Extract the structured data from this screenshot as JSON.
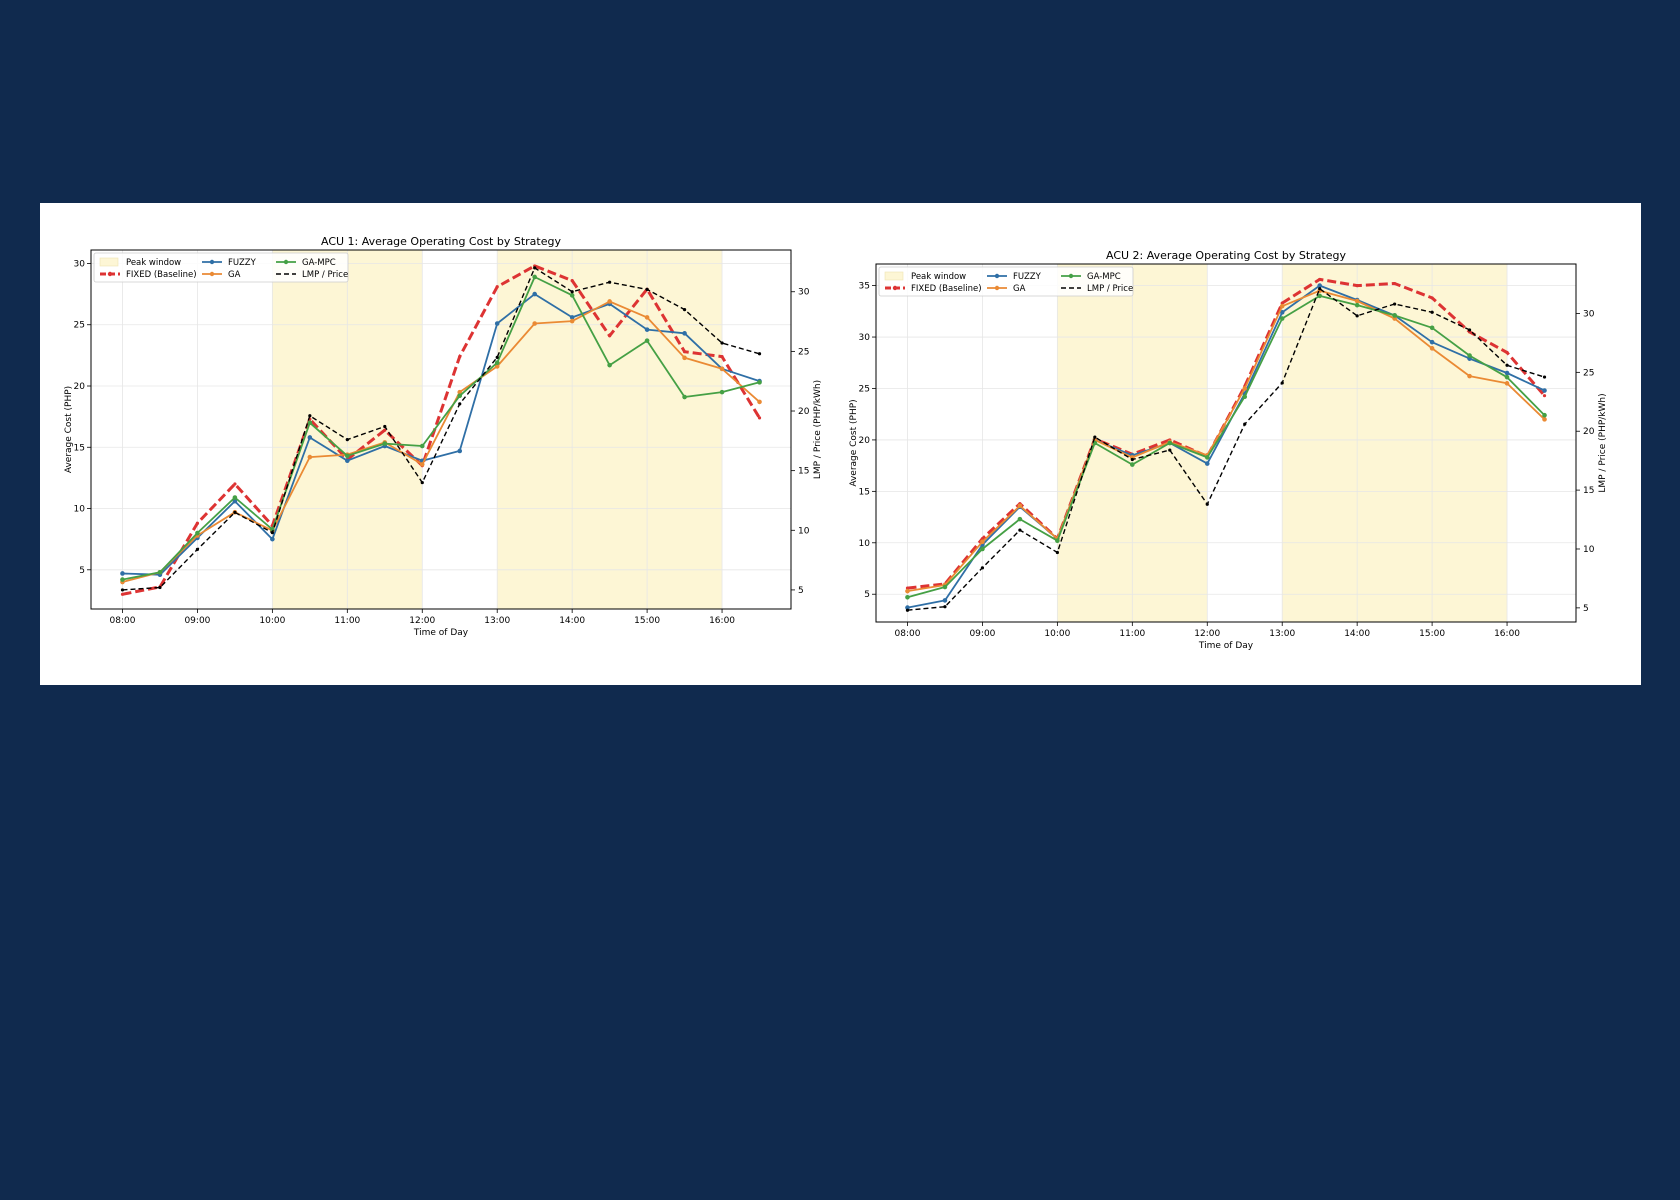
{
  "colors": {
    "FUZZY": "#2f6fa6",
    "FIXED": "#dd3333",
    "GA": "#ea8a34",
    "GA_MPC": "#45a045",
    "LMP": "#000000",
    "peak": "#fdf6d5"
  },
  "legend_labels": [
    "Peak window",
    "FIXED (Baseline)",
    "FUZZY",
    "GA",
    "GA-MPC",
    "LMP / Price"
  ],
  "chart_data": [
    {
      "type": "line",
      "title": "ACU 1: Average Operating Cost by Strategy",
      "xlabel": "Time of Day",
      "ylabel": "Average Cost (PHP)",
      "y2label": "LMP / Price (PHP/kWh)",
      "x": [
        8,
        8.5,
        9,
        9.5,
        10,
        10.5,
        11,
        11.5,
        12,
        12.5,
        13,
        13.5,
        14,
        14.5,
        15,
        15.5,
        16,
        16.5
      ],
      "xticks": [
        "08:00",
        "09:00",
        "10:00",
        "11:00",
        "12:00",
        "13:00",
        "14:00",
        "15:00",
        "16:00"
      ],
      "xticks_hours": [
        8,
        9,
        10,
        11,
        12,
        13,
        14,
        15,
        16
      ],
      "xlim": [
        7.58,
        16.92
      ],
      "ylim": [
        1.8,
        31.1
      ],
      "yticks": [
        5,
        10,
        15,
        20,
        25,
        30
      ],
      "y2lim": [
        3.4,
        33.5
      ],
      "y2ticks": [
        5,
        10,
        15,
        20,
        25,
        30
      ],
      "peak_windows": [
        [
          10,
          12
        ],
        [
          13,
          16
        ]
      ],
      "grid": true,
      "legend_position": "upper-left",
      "series": [
        {
          "name": "FIXED (Baseline)",
          "key": "FIXED",
          "axis": "left",
          "dashed": true,
          "markers": false,
          "values": [
            3.0,
            3.6,
            8.8,
            12.0,
            8.6,
            17.3,
            14.0,
            16.4,
            13.5,
            22.4,
            28.1,
            29.8,
            28.6,
            24.1,
            27.9,
            22.8,
            22.4,
            17.4
          ]
        },
        {
          "name": "FUZZY",
          "key": "FUZZY",
          "axis": "left",
          "dashed": false,
          "markers": true,
          "values": [
            4.7,
            4.6,
            7.6,
            10.6,
            7.5,
            15.8,
            13.9,
            15.1,
            13.9,
            14.7,
            25.1,
            27.5,
            25.6,
            26.7,
            24.6,
            24.3,
            21.4,
            20.4
          ]
        },
        {
          "name": "GA",
          "key": "GA",
          "axis": "left",
          "dashed": false,
          "markers": true,
          "values": [
            4.0,
            4.8,
            7.8,
            9.7,
            8.2,
            14.2,
            14.4,
            15.4,
            13.6,
            19.5,
            21.6,
            25.1,
            25.3,
            26.9,
            25.6,
            22.3,
            21.4,
            18.7
          ]
        },
        {
          "name": "GA-MPC",
          "key": "GA_MPC",
          "axis": "left",
          "dashed": false,
          "markers": true,
          "values": [
            4.2,
            4.8,
            8.0,
            10.9,
            8.3,
            17.0,
            14.3,
            15.3,
            15.1,
            19.2,
            21.9,
            28.9,
            27.4,
            21.7,
            23.7,
            19.1,
            19.5,
            20.3
          ]
        },
        {
          "name": "LMP / Price",
          "key": "LMP",
          "axis": "right",
          "dashed": true,
          "markers": false,
          "values": [
            5.0,
            5.2,
            8.4,
            11.5,
            9.8,
            19.6,
            17.6,
            18.7,
            14.0,
            20.6,
            24.5,
            32.0,
            30.0,
            30.8,
            30.2,
            28.5,
            25.7,
            24.8
          ]
        }
      ]
    },
    {
      "type": "line",
      "title": "ACU 2: Average Operating Cost by Strategy",
      "xlabel": "Time of Day",
      "ylabel": "Average Cost (PHP)",
      "y2label": "LMP / Price (PHP/kWh)",
      "x": [
        8,
        8.5,
        9,
        9.5,
        10,
        10.5,
        11,
        11.5,
        12,
        12.5,
        13,
        13.5,
        14,
        14.5,
        15,
        15.5,
        16,
        16.5
      ],
      "xticks": [
        "08:00",
        "09:00",
        "10:00",
        "11:00",
        "12:00",
        "13:00",
        "14:00",
        "15:00",
        "16:00"
      ],
      "xticks_hours": [
        8,
        9,
        10,
        11,
        12,
        13,
        14,
        15,
        16
      ],
      "xlim": [
        7.58,
        16.92
      ],
      "ylim": [
        2.3,
        37.1
      ],
      "yticks": [
        5,
        10,
        15,
        20,
        25,
        30,
        35
      ],
      "y2lim": [
        3.8,
        34.2
      ],
      "y2ticks": [
        5,
        10,
        15,
        20,
        25,
        30
      ],
      "peak_windows": [
        [
          10,
          12
        ],
        [
          13,
          16
        ]
      ],
      "grid": true,
      "legend_position": "upper-left",
      "series": [
        {
          "name": "FIXED (Baseline)",
          "key": "FIXED",
          "axis": "left",
          "dashed": true,
          "markers": false,
          "values": [
            5.6,
            6.0,
            10.4,
            13.8,
            10.4,
            20.1,
            18.6,
            20.0,
            18.4,
            25.2,
            33.3,
            35.6,
            35.0,
            35.2,
            33.8,
            30.5,
            28.5,
            24.3
          ]
        },
        {
          "name": "FUZZY",
          "key": "FUZZY",
          "axis": "left",
          "dashed": false,
          "markers": true,
          "values": [
            3.7,
            4.4,
            9.8,
            13.5,
            10.4,
            20.0,
            18.5,
            19.7,
            17.7,
            24.5,
            32.4,
            35.0,
            33.6,
            32.1,
            29.5,
            27.9,
            26.5,
            24.8
          ]
        },
        {
          "name": "GA",
          "key": "GA",
          "axis": "left",
          "dashed": false,
          "markers": true,
          "values": [
            5.3,
            5.9,
            10.1,
            13.6,
            10.4,
            20.0,
            18.3,
            19.8,
            18.5,
            25.0,
            33.0,
            34.5,
            33.5,
            31.8,
            28.9,
            26.2,
            25.5,
            22.0
          ]
        },
        {
          "name": "GA-MPC",
          "key": "GA_MPC",
          "axis": "left",
          "dashed": false,
          "markers": true,
          "values": [
            4.7,
            5.7,
            9.4,
            12.3,
            10.2,
            19.7,
            17.6,
            19.7,
            18.3,
            24.2,
            31.8,
            34.0,
            33.1,
            32.1,
            30.9,
            28.2,
            26.1,
            22.4
          ]
        },
        {
          "name": "LMP / Price",
          "key": "LMP",
          "axis": "right",
          "dashed": true,
          "markers": false,
          "values": [
            4.8,
            5.1,
            8.4,
            11.6,
            9.7,
            19.5,
            17.6,
            18.4,
            13.8,
            20.6,
            24.1,
            32.1,
            29.8,
            30.8,
            30.1,
            28.6,
            25.6,
            24.6
          ]
        }
      ]
    }
  ]
}
